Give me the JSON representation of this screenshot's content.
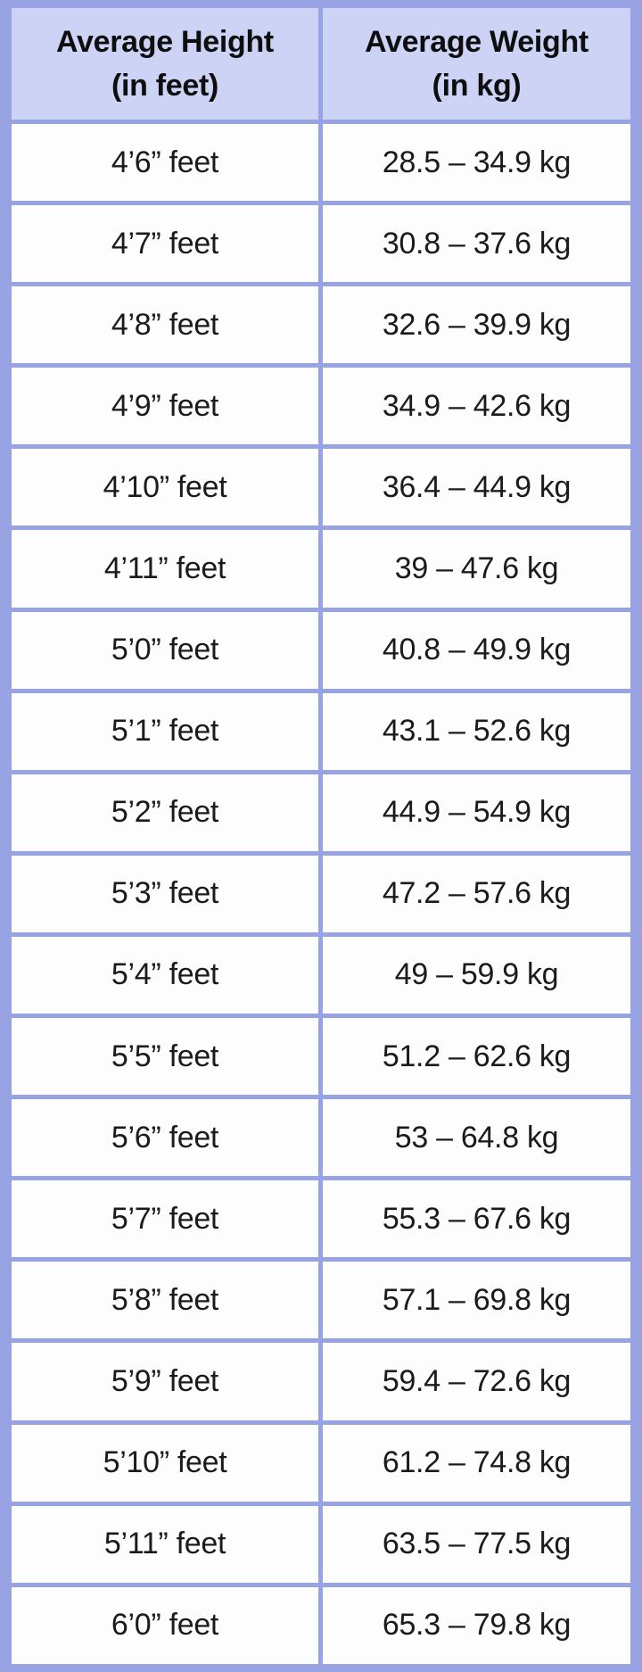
{
  "colors": {
    "border": "#97a3e2",
    "header_bg": "#cdd3f4",
    "cell_bg": "#fdfdfe",
    "text": "#1b1b1b"
  },
  "table": {
    "header": [
      {
        "line1": "Average Height",
        "line2": "(in feet)"
      },
      {
        "line1": "Average Weight",
        "line2": "(in kg)"
      }
    ],
    "rows": [
      {
        "height": "4’6” feet",
        "weight": "28.5 – 34.9 kg"
      },
      {
        "height": "4’7” feet",
        "weight": "30.8 – 37.6 kg"
      },
      {
        "height": "4’8” feet",
        "weight": "32.6 – 39.9 kg"
      },
      {
        "height": "4’9” feet",
        "weight": "34.9 – 42.6 kg"
      },
      {
        "height": "4’10” feet",
        "weight": "36.4 – 44.9 kg"
      },
      {
        "height": "4’11” feet",
        "weight": "39 – 47.6 kg"
      },
      {
        "height": "5’0” feet",
        "weight": "40.8 – 49.9 kg"
      },
      {
        "height": "5’1” feet",
        "weight": "43.1 – 52.6 kg"
      },
      {
        "height": "5’2” feet",
        "weight": "44.9 – 54.9 kg"
      },
      {
        "height": "5’3” feet",
        "weight": "47.2 – 57.6 kg"
      },
      {
        "height": "5’4” feet",
        "weight": "49 – 59.9 kg"
      },
      {
        "height": "5’5” feet",
        "weight": "51.2 – 62.6 kg"
      },
      {
        "height": "5’6” feet",
        "weight": "53 – 64.8 kg"
      },
      {
        "height": "5’7” feet",
        "weight": "55.3 – 67.6 kg"
      },
      {
        "height": "5’8” feet",
        "weight": "57.1 – 69.8 kg"
      },
      {
        "height": "5’9” feet",
        "weight": "59.4 – 72.6 kg"
      },
      {
        "height": "5’10” feet",
        "weight": "61.2 – 74.8 kg"
      },
      {
        "height": "5’11” feet",
        "weight": "63.5 – 77.5 kg"
      },
      {
        "height": "6’0” feet",
        "weight": "65.3 – 79.8 kg"
      }
    ]
  },
  "chart_data": {
    "type": "table",
    "title": "",
    "columns": [
      "Average Height (in feet)",
      "Average Weight (in kg)"
    ],
    "rows": [
      [
        "4’6” feet",
        "28.5 – 34.9 kg"
      ],
      [
        "4’7” feet",
        "30.8 – 37.6 kg"
      ],
      [
        "4’8” feet",
        "32.6 – 39.9 kg"
      ],
      [
        "4’9” feet",
        "34.9 – 42.6 kg"
      ],
      [
        "4’10” feet",
        "36.4 – 44.9 kg"
      ],
      [
        "4’11” feet",
        "39 – 47.6 kg"
      ],
      [
        "5’0” feet",
        "40.8 – 49.9 kg"
      ],
      [
        "5’1” feet",
        "43.1 – 52.6 kg"
      ],
      [
        "5’2” feet",
        "44.9 – 54.9 kg"
      ],
      [
        "5’3” feet",
        "47.2 – 57.6 kg"
      ],
      [
        "5’4” feet",
        "49 – 59.9 kg"
      ],
      [
        "5’5” feet",
        "51.2 – 62.6 kg"
      ],
      [
        "5’6” feet",
        "53 – 64.8 kg"
      ],
      [
        "5’7” feet",
        "55.3 – 67.6 kg"
      ],
      [
        "5’8” feet",
        "57.1 – 69.8 kg"
      ],
      [
        "5’9” feet",
        "59.4 – 72.6 kg"
      ],
      [
        "5’10” feet",
        "61.2 – 74.8 kg"
      ],
      [
        "5’11” feet",
        "63.5 – 77.5 kg"
      ],
      [
        "6’0” feet",
        "65.3 – 79.8 kg"
      ]
    ],
    "weight_ranges_kg": [
      [
        28.5,
        34.9
      ],
      [
        30.8,
        37.6
      ],
      [
        32.6,
        39.9
      ],
      [
        34.9,
        42.6
      ],
      [
        36.4,
        44.9
      ],
      [
        39,
        47.6
      ],
      [
        40.8,
        49.9
      ],
      [
        43.1,
        52.6
      ],
      [
        44.9,
        54.9
      ],
      [
        47.2,
        57.6
      ],
      [
        49,
        59.9
      ],
      [
        51.2,
        62.6
      ],
      [
        53,
        64.8
      ],
      [
        55.3,
        67.6
      ],
      [
        57.1,
        69.8
      ],
      [
        59.4,
        72.6
      ],
      [
        61.2,
        74.8
      ],
      [
        63.5,
        77.5
      ],
      [
        65.3,
        79.8
      ]
    ]
  }
}
